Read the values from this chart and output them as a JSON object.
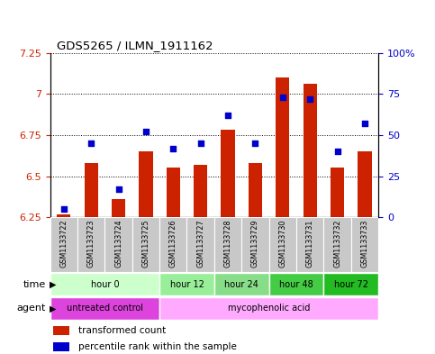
{
  "title": "GDS5265 / ILMN_1911162",
  "samples": [
    "GSM1133722",
    "GSM1133723",
    "GSM1133724",
    "GSM1133725",
    "GSM1133726",
    "GSM1133727",
    "GSM1133728",
    "GSM1133729",
    "GSM1133730",
    "GSM1133731",
    "GSM1133732",
    "GSM1133733"
  ],
  "transformed_count": [
    6.27,
    6.58,
    6.36,
    6.65,
    6.55,
    6.57,
    6.78,
    6.58,
    7.1,
    7.06,
    6.55,
    6.65
  ],
  "percentile_rank": [
    5,
    45,
    17,
    52,
    42,
    45,
    62,
    45,
    73,
    72,
    40,
    57
  ],
  "ymin": 6.25,
  "ymax": 7.25,
  "yticks": [
    6.25,
    6.5,
    6.75,
    7.0,
    7.25
  ],
  "ytick_labels": [
    "6.25",
    "6.5",
    "6.75",
    "7",
    "7.25"
  ],
  "y2min": 0,
  "y2max": 100,
  "y2ticks": [
    0,
    25,
    50,
    75,
    100
  ],
  "y2tick_labels": [
    "0",
    "25",
    "50",
    "75",
    "100%"
  ],
  "bar_color": "#CC2200",
  "dot_color": "#0000CC",
  "bar_width": 0.5,
  "time_groups": [
    {
      "label": "hour 0",
      "samples": [
        0,
        1,
        2,
        3
      ],
      "color": "#CCFFCC"
    },
    {
      "label": "hour 12",
      "samples": [
        4,
        5
      ],
      "color": "#99EE99"
    },
    {
      "label": "hour 24",
      "samples": [
        6,
        7
      ],
      "color": "#88DD88"
    },
    {
      "label": "hour 48",
      "samples": [
        8,
        9
      ],
      "color": "#44CC44"
    },
    {
      "label": "hour 72",
      "samples": [
        10,
        11
      ],
      "color": "#22BB22"
    }
  ],
  "agent_groups": [
    {
      "label": "untreated control",
      "samples": [
        0,
        1,
        2,
        3
      ],
      "color": "#DD44DD"
    },
    {
      "label": "mycophenolic acid",
      "samples": [
        4,
        5,
        6,
        7,
        8,
        9,
        10,
        11
      ],
      "color": "#FFAAFF"
    }
  ],
  "label_color_left": "#CC2200",
  "label_color_right": "#0000CC",
  "background_color": "#FFFFFF",
  "sample_bg": "#C8C8C8"
}
